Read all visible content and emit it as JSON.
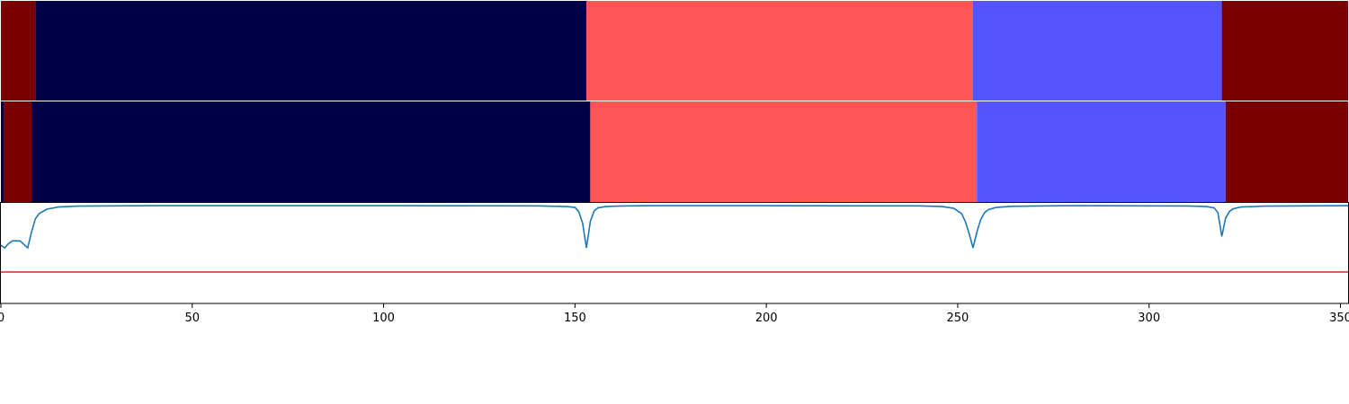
{
  "chart_data": {
    "type": "heatmap",
    "xlim": [
      0,
      352
    ],
    "x_ticks": [
      0,
      50,
      100,
      150,
      200,
      250,
      300,
      350
    ],
    "colors": {
      "dark_red": "#7a0000",
      "navy": "#000048",
      "salmon": "#ff5555",
      "periwinkle": "#5555ff",
      "curve": "#1f77b4",
      "threshold": "#d62728"
    },
    "segment_rows": [
      {
        "segments": [
          {
            "start": 0,
            "end": 9,
            "color": "dark_red"
          },
          {
            "start": 9,
            "end": 153,
            "color": "navy"
          },
          {
            "start": 153,
            "end": 254,
            "color": "salmon"
          },
          {
            "start": 254,
            "end": 319,
            "color": "periwinkle"
          },
          {
            "start": 319,
            "end": 352,
            "color": "dark_red"
          }
        ]
      },
      {
        "segments": [
          {
            "start": 0,
            "end": 0.8,
            "color": "navy"
          },
          {
            "start": 0.8,
            "end": 8,
            "color": "dark_red"
          },
          {
            "start": 8,
            "end": 154,
            "color": "navy"
          },
          {
            "start": 154,
            "end": 255,
            "color": "salmon"
          },
          {
            "start": 255,
            "end": 320,
            "color": "periwinkle"
          },
          {
            "start": 320,
            "end": 352,
            "color": "dark_red"
          }
        ]
      }
    ],
    "line_panel": {
      "ylim": [
        0,
        1
      ],
      "threshold": 0.31,
      "x": [
        0,
        1,
        2,
        3,
        4,
        5,
        6,
        7,
        8,
        9,
        10,
        12,
        15,
        20,
        40,
        100,
        140,
        148,
        150,
        151,
        152,
        153,
        154,
        155,
        156,
        158,
        162,
        170,
        200,
        240,
        246,
        249,
        251,
        252,
        253,
        254,
        255,
        256,
        257,
        258,
        260,
        264,
        280,
        310,
        315,
        317,
        318,
        319,
        320,
        321,
        322,
        324,
        330,
        352
      ],
      "y": [
        0.55,
        0.52,
        0.57,
        0.6,
        0.6,
        0.6,
        0.56,
        0.52,
        0.7,
        0.85,
        0.91,
        0.96,
        0.985,
        0.995,
        1.0,
        1.0,
        0.998,
        0.99,
        0.98,
        0.93,
        0.8,
        0.52,
        0.82,
        0.94,
        0.975,
        0.99,
        0.997,
        1.0,
        1.0,
        0.998,
        0.99,
        0.97,
        0.91,
        0.82,
        0.68,
        0.52,
        0.7,
        0.84,
        0.92,
        0.955,
        0.98,
        0.993,
        1.0,
        0.997,
        0.99,
        0.975,
        0.92,
        0.65,
        0.86,
        0.935,
        0.965,
        0.985,
        0.995,
        1.0
      ]
    }
  }
}
